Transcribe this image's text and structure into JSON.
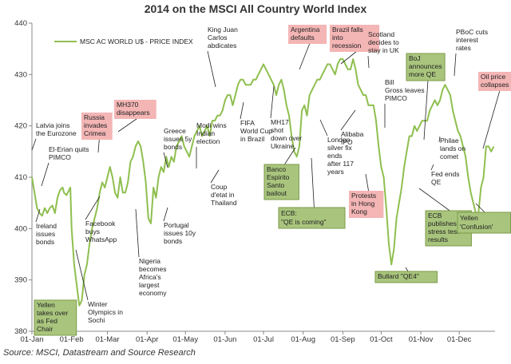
{
  "chart_data": {
    "type": "line",
    "title": "2014 on the MSCI All Country World Index",
    "source": "Source: MSCI, Datastream and Source Research",
    "legend": "MSC AC WORLD U$ - PRICE INDEX",
    "legend_position": "top-left",
    "ylim": [
      380,
      440
    ],
    "yticks": [
      380,
      390,
      400,
      410,
      420,
      430,
      440
    ],
    "xticks": [
      {
        "label": "01-Jan",
        "day": 0
      },
      {
        "label": "01-Feb",
        "day": 31
      },
      {
        "label": "01-Mar",
        "day": 59
      },
      {
        "label": "01-Apr",
        "day": 90
      },
      {
        "label": "01-May",
        "day": 120
      },
      {
        "label": "01-Jun",
        "day": 151
      },
      {
        "label": "01-Jul",
        "day": 181
      },
      {
        "label": "01-Aug",
        "day": 212
      },
      {
        "label": "01-Sep",
        "day": 243
      },
      {
        "label": "01-Oct",
        "day": 273
      },
      {
        "label": "01-Nov",
        "day": 304
      },
      {
        "label": "01-Dec",
        "day": 334
      }
    ],
    "grid": false,
    "line_color": "#8fbf4f",
    "series": [
      {
        "name": "MSC AC WORLD U$ - PRICE INDEX",
        "points": [
          [
            0,
            410
          ],
          [
            2,
            407
          ],
          [
            4,
            404
          ],
          [
            6,
            403
          ],
          [
            8,
            402.5
          ],
          [
            10,
            404
          ],
          [
            12,
            403
          ],
          [
            14,
            404
          ],
          [
            16,
            404.5
          ],
          [
            18,
            403
          ],
          [
            20,
            406
          ],
          [
            22,
            407.5
          ],
          [
            24,
            408
          ],
          [
            25,
            407
          ],
          [
            27,
            406.5
          ],
          [
            29,
            407.5
          ],
          [
            30,
            408
          ],
          [
            31,
            400
          ],
          [
            33,
            393
          ],
          [
            35,
            389
          ],
          [
            37,
            385
          ],
          [
            39,
            386
          ],
          [
            41,
            391
          ],
          [
            43,
            393
          ],
          [
            45,
            397
          ],
          [
            47,
            400
          ],
          [
            49,
            402
          ],
          [
            51,
            404
          ],
          [
            53,
            407
          ],
          [
            55,
            409
          ],
          [
            57,
            408
          ],
          [
            59,
            410
          ],
          [
            61,
            412
          ],
          [
            63,
            410
          ],
          [
            65,
            407
          ],
          [
            67,
            406
          ],
          [
            69,
            410
          ],
          [
            71,
            407
          ],
          [
            73,
            407
          ],
          [
            75,
            409
          ],
          [
            77,
            413
          ],
          [
            79,
            414
          ],
          [
            81,
            416
          ],
          [
            83,
            417
          ],
          [
            85,
            416
          ],
          [
            87,
            413
          ],
          [
            89,
            409
          ],
          [
            91,
            402
          ],
          [
            93,
            401
          ],
          [
            95,
            408
          ],
          [
            97,
            406
          ],
          [
            99,
            410
          ],
          [
            101,
            412
          ],
          [
            103,
            411
          ],
          [
            105,
            414
          ],
          [
            107,
            412
          ],
          [
            109,
            414
          ],
          [
            111,
            413
          ],
          [
            113,
            416
          ],
          [
            115,
            417
          ],
          [
            117,
            418
          ],
          [
            119,
            416
          ],
          [
            121,
            415
          ],
          [
            123,
            414
          ],
          [
            125,
            416
          ],
          [
            127,
            418
          ],
          [
            129,
            419
          ],
          [
            131,
            420
          ],
          [
            133,
            418
          ],
          [
            135,
            419
          ],
          [
            137,
            420
          ],
          [
            139,
            418
          ],
          [
            141,
            421
          ],
          [
            143,
            421
          ],
          [
            145,
            422
          ],
          [
            147,
            422
          ],
          [
            149,
            423
          ],
          [
            151,
            425
          ],
          [
            153,
            426
          ],
          [
            155,
            426
          ],
          [
            157,
            424
          ],
          [
            159,
            426
          ],
          [
            161,
            428
          ],
          [
            163,
            429
          ],
          [
            165,
            429
          ],
          [
            167,
            428
          ],
          [
            169,
            428
          ],
          [
            171,
            428
          ],
          [
            173,
            429
          ],
          [
            175,
            429
          ],
          [
            177,
            430
          ],
          [
            179,
            431
          ],
          [
            181,
            432
          ],
          [
            183,
            431
          ],
          [
            185,
            430
          ],
          [
            187,
            429
          ],
          [
            189,
            428
          ],
          [
            191,
            426
          ],
          [
            193,
            428
          ],
          [
            195,
            429
          ],
          [
            197,
            427
          ],
          [
            199,
            424
          ],
          [
            201,
            422
          ],
          [
            203,
            418
          ],
          [
            205,
            415
          ],
          [
            207,
            414
          ],
          [
            209,
            416
          ],
          [
            211,
            423
          ],
          [
            213,
            424
          ],
          [
            215,
            422
          ],
          [
            217,
            426
          ],
          [
            219,
            427
          ],
          [
            221,
            428
          ],
          [
            223,
            429
          ],
          [
            225,
            429
          ],
          [
            227,
            430
          ],
          [
            229,
            431
          ],
          [
            231,
            432
          ],
          [
            233,
            432
          ],
          [
            235,
            431
          ],
          [
            237,
            430
          ],
          [
            239,
            432
          ],
          [
            241,
            433
          ],
          [
            243,
            433
          ],
          [
            245,
            432
          ],
          [
            247,
            431
          ],
          [
            249,
            431
          ],
          [
            251,
            433
          ],
          [
            253,
            431
          ],
          [
            255,
            428
          ],
          [
            257,
            427
          ],
          [
            259,
            426
          ],
          [
            261,
            426
          ],
          [
            263,
            424
          ],
          [
            265,
            424
          ],
          [
            267,
            424
          ],
          [
            269,
            421
          ],
          [
            271,
            416
          ],
          [
            273,
            412
          ],
          [
            275,
            410
          ],
          [
            277,
            404
          ],
          [
            279,
            397
          ],
          [
            281,
            393
          ],
          [
            283,
            396
          ],
          [
            285,
            402
          ],
          [
            287,
            405
          ],
          [
            289,
            408
          ],
          [
            291,
            412
          ],
          [
            293,
            415
          ],
          [
            295,
            418
          ],
          [
            297,
            418
          ],
          [
            299,
            420
          ],
          [
            301,
            419
          ],
          [
            303,
            420
          ],
          [
            305,
            421
          ],
          [
            307,
            421
          ],
          [
            309,
            421
          ],
          [
            311,
            423
          ],
          [
            313,
            424
          ],
          [
            315,
            425
          ],
          [
            317,
            424
          ],
          [
            319,
            425
          ],
          [
            321,
            427
          ],
          [
            323,
            428
          ],
          [
            325,
            427
          ],
          [
            327,
            426
          ],
          [
            329,
            423
          ],
          [
            331,
            421
          ],
          [
            333,
            419
          ],
          [
            335,
            418
          ],
          [
            337,
            416
          ],
          [
            339,
            414
          ],
          [
            341,
            410
          ],
          [
            343,
            407
          ],
          [
            345,
            405
          ],
          [
            347,
            403
          ],
          [
            349,
            403
          ],
          [
            351,
            408
          ],
          [
            353,
            410
          ],
          [
            355,
            416
          ],
          [
            357,
            416
          ],
          [
            359,
            415
          ],
          [
            361,
            416
          ]
        ]
      }
    ],
    "annotations": [
      {
        "lines": [
          "Latvia joins",
          "the Eurozone"
        ],
        "style": "plain"
      },
      {
        "lines": [
          "El-Erian quits",
          "PIMCO"
        ],
        "style": "plain"
      },
      {
        "lines": [
          "Ireland",
          "issues",
          "bonds"
        ],
        "style": "plain"
      },
      {
        "lines": [
          "Yellen",
          "takes over",
          "as Fed",
          "Chair"
        ],
        "style": "green"
      },
      {
        "lines": [
          "Winter",
          "Olympics in",
          "Sochi"
        ],
        "style": "plain"
      },
      {
        "lines": [
          "Russia",
          "invades",
          "Crimea"
        ],
        "style": "pink"
      },
      {
        "lines": [
          "Facebook",
          "buys",
          "WhatsApp"
        ],
        "style": "plain"
      },
      {
        "lines": [
          "MH370",
          "disappears"
        ],
        "style": "pink"
      },
      {
        "lines": [
          "Nigeria",
          "becomes",
          "Africa's",
          "largest",
          "economy"
        ],
        "style": "plain"
      },
      {
        "lines": [
          "Greece",
          "issues 5y",
          "bonds"
        ],
        "style": "plain"
      },
      {
        "lines": [
          "Portugal",
          "issues 10y",
          "bonds"
        ],
        "style": "plain"
      },
      {
        "lines": [
          "Modi wins",
          "Indian",
          "election"
        ],
        "style": "plain"
      },
      {
        "lines": [
          "King Juan",
          "Carlos",
          "abdicates"
        ],
        "style": "plain"
      },
      {
        "lines": [
          "Coup",
          "d'etat in",
          "Thailand"
        ],
        "style": "plain"
      },
      {
        "lines": [
          "FIFA",
          "World Cup",
          "in Brazil"
        ],
        "style": "plain"
      },
      {
        "lines": [
          "MH17",
          "shot",
          "down over",
          "Ukraine"
        ],
        "style": "plain"
      },
      {
        "lines": [
          "Argentina",
          "defaults"
        ],
        "style": "pink"
      },
      {
        "lines": [
          "Banco",
          "Espirito",
          "Santo",
          "bailout"
        ],
        "style": "green"
      },
      {
        "lines": [
          "ECB:",
          "\"QE is coming\""
        ],
        "style": "green"
      },
      {
        "lines": [
          "Brazil falls",
          "into",
          "recession"
        ],
        "style": "pink"
      },
      {
        "lines": [
          "London",
          "silver fix",
          "ends",
          "after 117",
          "years"
        ],
        "style": "plain"
      },
      {
        "lines": [
          "Scotland",
          "decides to",
          "stay in UK"
        ],
        "style": "plain"
      },
      {
        "lines": [
          "Alibaba",
          "IPO"
        ],
        "style": "plain"
      },
      {
        "lines": [
          "Bill",
          "Gross leaves",
          "PIMCO"
        ],
        "style": "plain"
      },
      {
        "lines": [
          "Protests",
          "in Hong",
          "Kong"
        ],
        "style": "pink"
      },
      {
        "lines": [
          "Bullard \"QE4\""
        ],
        "style": "green"
      },
      {
        "lines": [
          "BoJ",
          "announces",
          "more QE"
        ],
        "style": "green"
      },
      {
        "lines": [
          "PBoC cuts",
          "interest",
          "rates"
        ],
        "style": "plain"
      },
      {
        "lines": [
          "ECB",
          "publishes",
          "stress test",
          "results"
        ],
        "style": "green"
      },
      {
        "lines": [
          "Fed ends",
          "QE"
        ],
        "style": "plain"
      },
      {
        "lines": [
          "Philae",
          "lands on",
          "comet"
        ],
        "style": "plain"
      },
      {
        "lines": [
          "Oil price",
          "collapses"
        ],
        "style": "pink"
      },
      {
        "lines": [
          "Yellen",
          "'Confusion'"
        ],
        "style": "green"
      }
    ]
  }
}
